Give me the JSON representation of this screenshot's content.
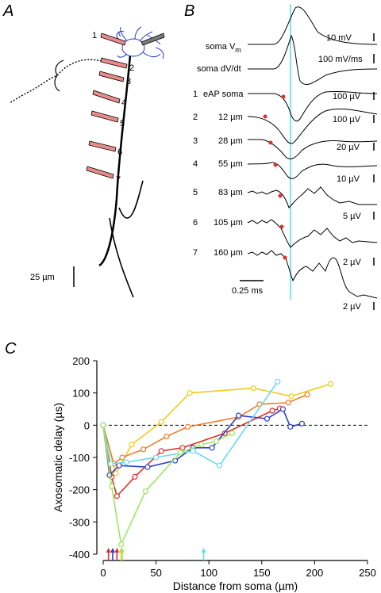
{
  "panels": {
    "a": {
      "letter": "A",
      "scale_bar_label": "25 µm",
      "electrodes": [
        "1",
        "2",
        "3",
        "4",
        "5",
        "6",
        "7"
      ]
    },
    "b": {
      "letter": "B",
      "left_labels": [
        {
          "num": "",
          "text": "soma V"
        },
        {
          "num": "",
          "text": "soma dV/dt"
        },
        {
          "num": "1",
          "text": "eAP soma"
        },
        {
          "num": "2",
          "text": "12 µm"
        },
        {
          "num": "3",
          "text": "28 µm"
        },
        {
          "num": "4",
          "text": "55 µm"
        },
        {
          "num": "5",
          "text": "83 µm"
        },
        {
          "num": "6",
          "text": "105 µm"
        },
        {
          "num": "7",
          "text": "160 µm"
        }
      ],
      "vm_subscript": "m",
      "right_scales": [
        "10 mV",
        "100 mV/ms",
        "100 µV",
        "100 µV",
        "20 µV",
        "10 µV",
        "5 µV",
        "2 µV",
        "2 µV"
      ],
      "time_scale": "0.25 ms",
      "marker_color": "#e0302a",
      "cursor_color": "#66d9f0"
    },
    "c": {
      "letter": "C"
    }
  },
  "chart_data": {
    "type": "line",
    "xlabel": "Distance from soma (µm)",
    "ylabel": "Axosomatic delay (µs)",
    "xlim": [
      0,
      250
    ],
    "ylim": [
      -400,
      200
    ],
    "xticks": [
      0,
      50,
      100,
      150,
      200,
      250
    ],
    "yticks": [
      -400,
      -300,
      -200,
      -100,
      0,
      100,
      200
    ],
    "zero_line": "dashed",
    "series": [
      {
        "color": "#f2cc1a",
        "x": [
          0,
          12,
          27,
          55,
          82,
          142,
          178,
          215
        ],
        "y": [
          0,
          -150,
          -60,
          10,
          100,
          115,
          90,
          128
        ]
      },
      {
        "color": "#ef7b2a",
        "x": [
          0,
          10,
          18,
          38,
          60,
          80,
          128,
          148,
          175,
          193
        ],
        "y": [
          0,
          -120,
          -100,
          -75,
          -35,
          -5,
          25,
          65,
          70,
          95
        ]
      },
      {
        "color": "#e0302a",
        "x": [
          0,
          8,
          13,
          30,
          55,
          75,
          115,
          160,
          167
        ],
        "y": [
          0,
          -160,
          -220,
          -160,
          -80,
          -70,
          -25,
          45,
          52
        ]
      },
      {
        "color": "#2f3fd0",
        "x": [
          0,
          6,
          15,
          42,
          68,
          85,
          103,
          128,
          155,
          170,
          177,
          188
        ],
        "y": [
          0,
          -155,
          -125,
          -130,
          -110,
          -70,
          -70,
          30,
          20,
          50,
          -5,
          5
        ]
      },
      {
        "color": "#66d9f0",
        "x": [
          0,
          7,
          22,
          50,
          85,
          110,
          165
        ],
        "y": [
          0,
          -120,
          -115,
          -100,
          -80,
          -125,
          135
        ]
      },
      {
        "color": "#9be860",
        "x": [
          0,
          8,
          17,
          40,
          73,
          93,
          107,
          122
        ],
        "y": [
          0,
          -190,
          -370,
          -205,
          -85,
          -60,
          -50,
          -25
        ]
      }
    ],
    "arrows": [
      {
        "x": 5,
        "color": "#e0302a"
      },
      {
        "x": 9,
        "color": "#2f3fd0"
      },
      {
        "x": 13,
        "color": "#e0302a"
      },
      {
        "x": 17,
        "color": "#f2cc1a"
      },
      {
        "x": 18,
        "color": "#9be860"
      },
      {
        "x": 95,
        "color": "#66d9f0"
      }
    ]
  }
}
